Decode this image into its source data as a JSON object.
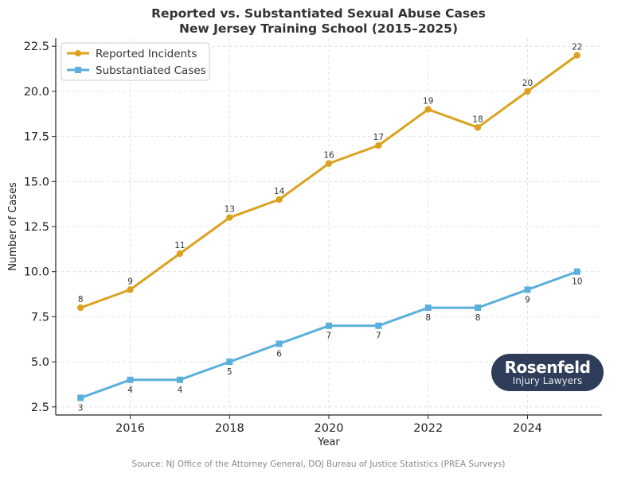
{
  "chart_data": {
    "type": "line",
    "title": "Reported vs. Substantiated Sexual Abuse Cases",
    "subtitle": "New Jersey Training School (2015–2025)",
    "xlabel": "Year",
    "ylabel": "Number of Cases",
    "x": [
      2015,
      2016,
      2017,
      2018,
      2019,
      2020,
      2021,
      2022,
      2023,
      2024,
      2025
    ],
    "xlim": [
      2014.5,
      2025.5
    ],
    "ylim": [
      2.05,
      22.95
    ],
    "xticks": [
      2016,
      2018,
      2020,
      2022,
      2024
    ],
    "yticks": [
      2.5,
      5.0,
      7.5,
      10.0,
      12.5,
      15.0,
      17.5,
      20.0,
      22.5
    ],
    "ytick_labels": [
      "2.5",
      "5.0",
      "7.5",
      "10.0",
      "12.5",
      "15.0",
      "17.5",
      "20.0",
      "22.5"
    ],
    "grid": true,
    "legend": "top-left",
    "series": [
      {
        "name": "Reported Incidents",
        "color": "#dba220",
        "marker": "circle",
        "values": [
          8,
          9,
          11,
          13,
          14,
          16,
          17,
          19,
          18,
          20,
          22
        ],
        "label_position": "above"
      },
      {
        "name": "Substantiated Cases",
        "color": "#5aafdb",
        "marker": "square",
        "values": [
          3,
          4,
          4,
          5,
          6,
          7,
          7,
          8,
          8,
          9,
          10
        ],
        "label_position": "below"
      }
    ]
  },
  "source": "Source: NJ Office of the Attorney General, DOJ Bureau of Justice Statistics (PREA Surveys)",
  "logo": {
    "name": "Rosenfeld",
    "tagline": "Injury Lawyers"
  }
}
